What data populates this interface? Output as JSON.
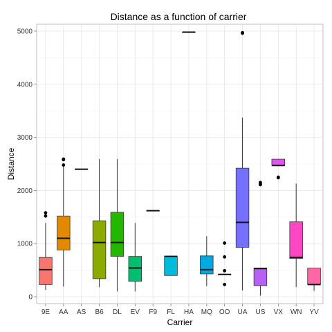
{
  "chart_data": {
    "type": "box",
    "title": "Distance as a function of carrier",
    "xlabel": "Carrier",
    "ylabel": "Distance",
    "ylim": [
      -130,
      5130
    ],
    "yticks": [
      0,
      1000,
      2000,
      3000,
      4000,
      5000
    ],
    "grid": true,
    "legend": "none",
    "categories": [
      "9E",
      "AA",
      "AS",
      "B6",
      "DL",
      "EV",
      "F9",
      "FL",
      "HA",
      "MQ",
      "OO",
      "UA",
      "US",
      "VX",
      "WN",
      "YV"
    ],
    "series": [
      {
        "category": "9E",
        "color": "#F8766D",
        "whisker_low": 130,
        "q1": 230,
        "median": 510,
        "q3": 740,
        "whisker_high": 1390,
        "outliers": [
          1520,
          1580
        ]
      },
      {
        "category": "AA",
        "color": "#E18A00",
        "whisker_low": 190,
        "q1": 880,
        "median": 1100,
        "q3": 1520,
        "whisker_high": 2470,
        "outliers": [
          2480,
          2580,
          2590
        ]
      },
      {
        "category": "AS",
        "color": "#BE9C00",
        "whisker_low": 2400,
        "q1": 2400,
        "median": 2400,
        "q3": 2400,
        "whisker_high": 2400,
        "outliers": []
      },
      {
        "category": "B6",
        "color": "#8CAB00",
        "whisker_low": 180,
        "q1": 340,
        "median": 1020,
        "q3": 1430,
        "whisker_high": 2590,
        "outliers": []
      },
      {
        "category": "DL",
        "color": "#24B700",
        "whisker_low": 100,
        "q1": 760,
        "median": 1020,
        "q3": 1590,
        "whisker_high": 2590,
        "outliers": []
      },
      {
        "category": "EV",
        "color": "#00BE70",
        "whisker_low": 100,
        "q1": 290,
        "median": 540,
        "q3": 760,
        "whisker_high": 1390,
        "outliers": []
      },
      {
        "category": "F9",
        "color": "#00C1AB",
        "whisker_low": 1620,
        "q1": 1620,
        "median": 1620,
        "q3": 1620,
        "whisker_high": 1620,
        "outliers": []
      },
      {
        "category": "FL",
        "color": "#00BBDA",
        "whisker_low": 400,
        "q1": 400,
        "median": 760,
        "q3": 760,
        "whisker_high": 760,
        "outliers": []
      },
      {
        "category": "HA",
        "color": "#00ACFC",
        "whisker_low": 4980,
        "q1": 4980,
        "median": 4980,
        "q3": 4980,
        "whisker_high": 4980,
        "outliers": []
      },
      {
        "category": "MQ",
        "color": "#00A9E0",
        "whisker_low": 200,
        "q1": 430,
        "median": 510,
        "q3": 770,
        "whisker_high": 1140,
        "outliers": []
      },
      {
        "category": "OO",
        "color": "#8B93FF",
        "whisker_low": 420,
        "q1": 420,
        "median": 420,
        "q3": 420,
        "whisker_high": 420,
        "outliers": [
          230,
          490,
          750,
          1010
        ]
      },
      {
        "category": "UA",
        "color": "#7570FF",
        "whisker_low": 120,
        "q1": 930,
        "median": 1400,
        "q3": 2420,
        "whisker_high": 3370,
        "outliers": [
          4960,
          4970
        ]
      },
      {
        "category": "US",
        "color": "#B760F4",
        "whisker_low": 20,
        "q1": 210,
        "median": 530,
        "q3": 540,
        "whisker_high": 540,
        "outliers": [
          2110,
          2130,
          2150
        ]
      },
      {
        "category": "VX",
        "color": "#E553F5",
        "whisker_low": 2460,
        "q1": 2470,
        "median": 2470,
        "q3": 2590,
        "whisker_high": 2590,
        "outliers": [
          2240,
          2250
        ]
      },
      {
        "category": "WN",
        "color": "#FF46C4",
        "whisker_low": 180,
        "q1": 720,
        "median": 740,
        "q3": 1410,
        "whisker_high": 2130,
        "outliers": []
      },
      {
        "category": "YV",
        "color": "#FF67A4",
        "whisker_low": 110,
        "q1": 230,
        "median": 230,
        "q3": 540,
        "whisker_high": 540,
        "outliers": []
      }
    ]
  }
}
